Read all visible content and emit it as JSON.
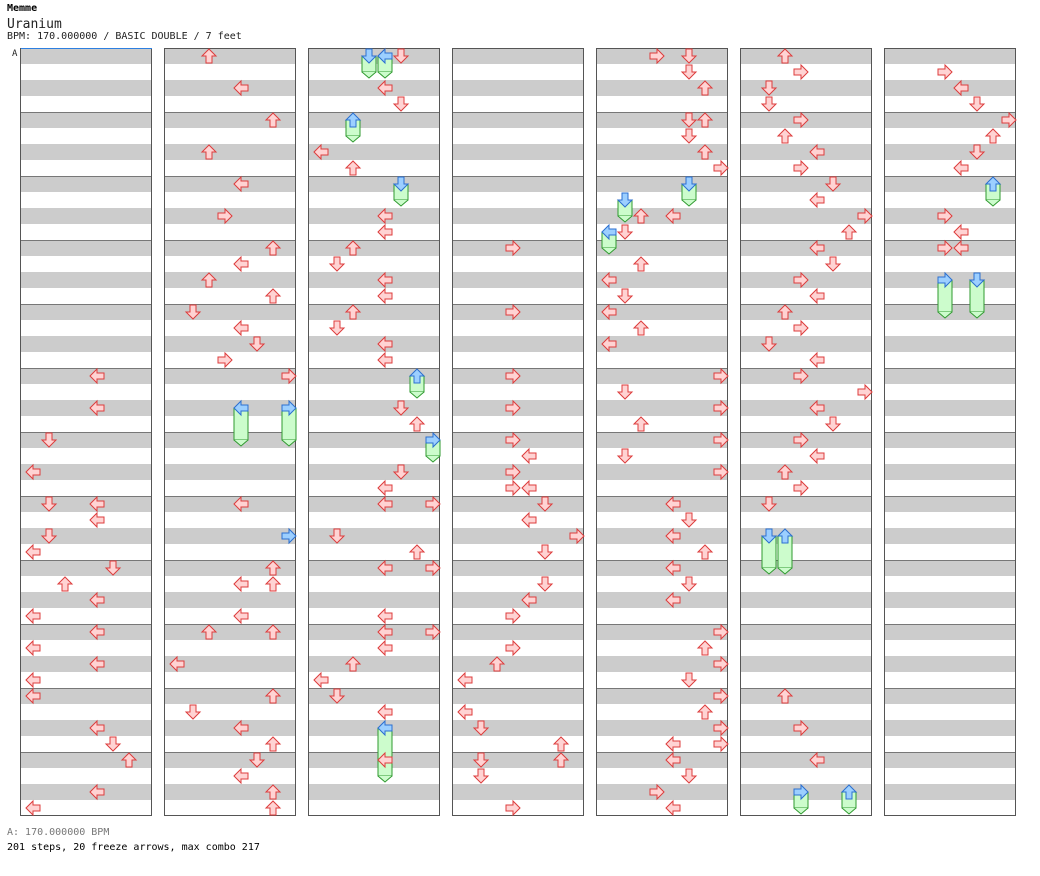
{
  "header": {
    "artist": "Memme",
    "title": "Uranium",
    "meta": "BPM: 170.000000 / BASIC DOUBLE / 7 feet"
  },
  "bpm_marker": {
    "label": "A"
  },
  "footer": {
    "bpm_line": "A: 170.000000 BPM",
    "stats_line": "201 steps, 20 freeze arrows, max combo 217"
  },
  "colors": {
    "band": "#cccccc",
    "border": "#555555",
    "measure_line": "#777777",
    "arrow_fill": "#ffd3d3",
    "arrow_stroke": "#dd3c3c",
    "freeze_fill": "#ccfccc",
    "freeze_stroke": "#2f9a2f",
    "freeze_head_fill": "#9ccfff",
    "freeze_head_stroke": "#2b6fd0"
  },
  "icons": {
    "left": "arrow-left-icon",
    "down": "arrow-down-icon",
    "up": "arrow-up-icon",
    "right": "arrow-right-icon"
  },
  "chart": {
    "columns": 7,
    "measures_per_column": 12,
    "rows_per_measure": 16,
    "lanes": [
      "P1-left",
      "P1-down",
      "P1-up",
      "P1-right",
      "P2-left",
      "P2-down",
      "P2-up",
      "P2-right"
    ],
    "notes": [
      [
        [
          20,
          "left",
          1
        ],
        [
          22,
          "left",
          1
        ],
        [
          24,
          "down",
          0
        ],
        [
          26,
          "left",
          0
        ],
        [
          28,
          "left",
          1
        ],
        [
          28,
          "down",
          0
        ],
        [
          29,
          "left",
          1
        ],
        [
          30,
          "down",
          0
        ],
        [
          31,
          "left",
          0
        ],
        [
          32,
          "down",
          1
        ],
        [
          33,
          "up",
          0
        ],
        [
          34,
          "left",
          1
        ],
        [
          35,
          "left",
          0
        ],
        [
          36,
          "left",
          1
        ],
        [
          37,
          "left",
          0
        ],
        [
          38,
          "left",
          1
        ],
        [
          39,
          "left",
          0
        ],
        [
          40,
          "left",
          0
        ],
        [
          42,
          "left",
          1
        ],
        [
          43,
          "down",
          1
        ],
        [
          44,
          "up",
          1
        ],
        [
          46,
          "left",
          1
        ],
        [
          47,
          "left",
          0
        ]
      ],
      [
        [
          0,
          "up",
          0
        ],
        [
          2,
          "left",
          1
        ],
        [
          4,
          "up",
          1
        ],
        [
          6,
          "up",
          0
        ],
        [
          8,
          "left",
          1
        ],
        [
          10,
          "right",
          0
        ],
        [
          12,
          "up",
          1
        ],
        [
          13,
          "left",
          1
        ],
        [
          14,
          "up",
          0
        ],
        [
          15,
          "up",
          1
        ],
        [
          16,
          "down",
          0
        ],
        [
          17,
          "left",
          1
        ],
        [
          18,
          "down",
          1
        ],
        [
          19,
          "right",
          0
        ],
        [
          20,
          "right",
          1
        ],
        [
          22,
          "left",
          1,
          "f",
          24
        ],
        [
          22,
          "right",
          1,
          "f",
          24
        ],
        [
          28,
          "left",
          1
        ],
        [
          30,
          "right",
          "h"
        ],
        [
          32,
          "up",
          1
        ],
        [
          33,
          "up",
          1
        ],
        [
          33,
          "left",
          1
        ],
        [
          35,
          "left",
          1
        ],
        [
          36,
          "up",
          0
        ],
        [
          36,
          "up",
          1
        ],
        [
          38,
          "left",
          0
        ],
        [
          40,
          "up",
          1
        ],
        [
          41,
          "down",
          0
        ],
        [
          42,
          "left",
          1
        ],
        [
          43,
          "up",
          1
        ],
        [
          44,
          "down",
          1
        ],
        [
          45,
          "left",
          1
        ],
        [
          46,
          "up",
          1
        ],
        [
          47,
          "up",
          1
        ]
      ],
      [
        [
          0,
          "down",
          1
        ],
        [
          0,
          "left",
          1
        ],
        [
          0,
          "f1",
          0,
          "f",
          1
        ],
        [
          0,
          "f2",
          1,
          "f",
          1
        ],
        [
          2,
          "left",
          1
        ],
        [
          3,
          "down",
          1
        ],
        [
          4,
          "up",
          0,
          "f",
          5
        ],
        [
          6,
          "left",
          0
        ],
        [
          7,
          "up",
          0
        ],
        [
          8,
          "down",
          1,
          "f",
          9
        ],
        [
          10,
          "left",
          1
        ],
        [
          11,
          "left",
          1
        ],
        [
          12,
          "up",
          0
        ],
        [
          13,
          "down",
          0
        ],
        [
          14,
          "left",
          1
        ],
        [
          15,
          "left",
          1
        ],
        [
          16,
          "up",
          0
        ],
        [
          17,
          "down",
          0
        ],
        [
          18,
          "left",
          1
        ],
        [
          19,
          "left",
          1
        ],
        [
          20,
          "up",
          1,
          "f",
          21
        ],
        [
          22,
          "down",
          1
        ],
        [
          23,
          "up",
          1
        ],
        [
          24,
          "right",
          1,
          "f",
          25
        ],
        [
          26,
          "down",
          1
        ],
        [
          27,
          "left",
          1
        ],
        [
          28,
          "left",
          1
        ],
        [
          28,
          "right",
          1
        ],
        [
          30,
          "down",
          0
        ],
        [
          31,
          "up",
          1
        ],
        [
          32,
          "left",
          1
        ],
        [
          32,
          "right",
          1
        ],
        [
          35,
          "left",
          1
        ],
        [
          36,
          "left",
          1
        ],
        [
          36,
          "right",
          1
        ],
        [
          37,
          "left",
          1
        ],
        [
          38,
          "up",
          0
        ],
        [
          39,
          "left",
          0
        ],
        [
          40,
          "down",
          0
        ],
        [
          41,
          "left",
          1
        ],
        [
          42,
          "left",
          1,
          "f",
          45
        ],
        [
          44,
          "left",
          1
        ]
      ],
      [
        [
          12,
          "right",
          0
        ],
        [
          16,
          "right",
          0
        ],
        [
          20,
          "right",
          0
        ],
        [
          22,
          "right",
          0
        ],
        [
          24,
          "right",
          0
        ],
        [
          25,
          "left",
          1
        ],
        [
          26,
          "right",
          0
        ],
        [
          27,
          "right",
          0
        ],
        [
          27,
          "left",
          1
        ],
        [
          28,
          "down",
          1
        ],
        [
          29,
          "left",
          1
        ],
        [
          30,
          "right",
          1
        ],
        [
          31,
          "down",
          1
        ],
        [
          33,
          "down",
          1
        ],
        [
          34,
          "left",
          1
        ],
        [
          35,
          "right",
          0
        ],
        [
          37,
          "right",
          0
        ],
        [
          38,
          "up",
          0
        ],
        [
          39,
          "left",
          0
        ],
        [
          41,
          "left",
          0
        ],
        [
          42,
          "down",
          0
        ],
        [
          43,
          "up",
          1
        ],
        [
          44,
          "down",
          0
        ],
        [
          44,
          "up",
          1
        ],
        [
          45,
          "down",
          0
        ],
        [
          47,
          "right",
          0
        ]
      ],
      [
        [
          0,
          "right",
          0
        ],
        [
          0,
          "down",
          1
        ],
        [
          1,
          "down",
          1
        ],
        [
          2,
          "up",
          1
        ],
        [
          4,
          "down",
          1
        ],
        [
          4,
          "up",
          1
        ],
        [
          5,
          "down",
          1
        ],
        [
          6,
          "up",
          1
        ],
        [
          7,
          "right",
          1
        ],
        [
          8,
          "down",
          1,
          "f",
          9
        ],
        [
          9,
          "down",
          0,
          "f",
          10
        ],
        [
          10,
          "left",
          1
        ],
        [
          10,
          "up",
          0
        ],
        [
          11,
          "left",
          0,
          "f",
          12
        ],
        [
          11,
          "down",
          0
        ],
        [
          13,
          "up",
          0
        ],
        [
          14,
          "left",
          0
        ],
        [
          15,
          "down",
          0
        ],
        [
          16,
          "left",
          0
        ],
        [
          17,
          "up",
          0
        ],
        [
          18,
          "left",
          0
        ],
        [
          20,
          "right",
          1
        ],
        [
          21,
          "down",
          0
        ],
        [
          22,
          "right",
          1
        ],
        [
          23,
          "up",
          0
        ],
        [
          24,
          "right",
          1
        ],
        [
          25,
          "down",
          0
        ],
        [
          26,
          "right",
          1
        ],
        [
          28,
          "left",
          1
        ],
        [
          29,
          "down",
          1
        ],
        [
          30,
          "left",
          1
        ],
        [
          31,
          "up",
          1
        ],
        [
          32,
          "left",
          1
        ],
        [
          33,
          "down",
          1
        ],
        [
          34,
          "left",
          1
        ],
        [
          36,
          "right",
          1
        ],
        [
          37,
          "up",
          1
        ],
        [
          38,
          "right",
          1
        ],
        [
          39,
          "down",
          1
        ],
        [
          40,
          "right",
          1
        ],
        [
          41,
          "up",
          1
        ],
        [
          42,
          "right",
          1
        ],
        [
          43,
          "left",
          1
        ],
        [
          43,
          "right",
          1
        ],
        [
          44,
          "left",
          1
        ],
        [
          45,
          "down",
          1
        ],
        [
          46,
          "right",
          0
        ],
        [
          47,
          "left",
          1
        ]
      ],
      [
        [
          0,
          "up",
          0
        ],
        [
          1,
          "right",
          0
        ],
        [
          2,
          "down",
          0
        ],
        [
          3,
          "down",
          0
        ],
        [
          4,
          "right",
          0
        ],
        [
          5,
          "up",
          0
        ],
        [
          6,
          "left",
          1
        ],
        [
          7,
          "right",
          0
        ],
        [
          8,
          "down",
          1
        ],
        [
          9,
          "left",
          1
        ],
        [
          10,
          "right",
          1
        ],
        [
          11,
          "up",
          1
        ],
        [
          12,
          "left",
          1
        ],
        [
          13,
          "down",
          1
        ],
        [
          14,
          "right",
          0
        ],
        [
          15,
          "left",
          1
        ],
        [
          16,
          "up",
          0
        ],
        [
          17,
          "right",
          0
        ],
        [
          18,
          "down",
          0
        ],
        [
          19,
          "left",
          1
        ],
        [
          20,
          "right",
          0
        ],
        [
          21,
          "right",
          1
        ],
        [
          22,
          "left",
          1
        ],
        [
          23,
          "down",
          1
        ],
        [
          24,
          "right",
          0
        ],
        [
          25,
          "left",
          1
        ],
        [
          26,
          "up",
          0
        ],
        [
          27,
          "right",
          0
        ],
        [
          28,
          "down",
          0
        ],
        [
          30,
          "down",
          0,
          "f",
          32
        ],
        [
          30,
          "up",
          0,
          "f",
          32
        ],
        [
          40,
          "up",
          0
        ],
        [
          42,
          "right",
          0
        ],
        [
          44,
          "left",
          1
        ],
        [
          46,
          "right",
          0,
          "f",
          47
        ],
        [
          46,
          "up",
          1,
          "f",
          47
        ]
      ],
      [
        [
          1,
          "right",
          0
        ],
        [
          2,
          "left",
          1
        ],
        [
          3,
          "down",
          1
        ],
        [
          4,
          "right",
          1
        ],
        [
          5,
          "up",
          1
        ],
        [
          6,
          "down",
          1
        ],
        [
          7,
          "left",
          1
        ],
        [
          8,
          "up",
          1,
          "f",
          9
        ],
        [
          10,
          "right",
          0
        ],
        [
          11,
          "left",
          1
        ],
        [
          12,
          "right",
          0
        ],
        [
          12,
          "left",
          1
        ],
        [
          14,
          "right",
          0,
          "f",
          16
        ],
        [
          14,
          "down",
          1,
          "f",
          16
        ]
      ]
    ]
  }
}
